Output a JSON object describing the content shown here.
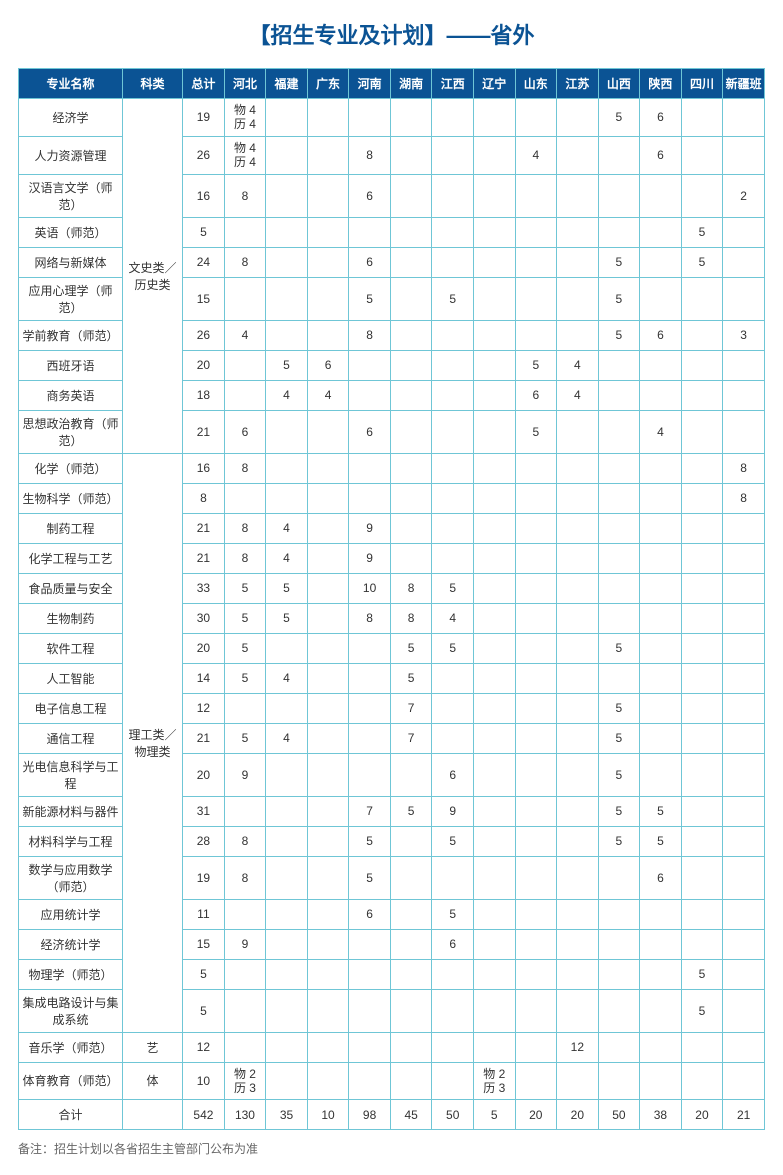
{
  "title": "【招生专业及计划】——省外",
  "columns": [
    "专业名称",
    "科类",
    "总计",
    "河北",
    "福建",
    "广东",
    "河南",
    "湖南",
    "江西",
    "辽宁",
    "山东",
    "江苏",
    "山西",
    "陕西",
    "四川",
    "新疆班"
  ],
  "categories": [
    {
      "label": "文史类／历史类",
      "count": 10
    },
    {
      "label": "理工类／物理类",
      "count": 18
    },
    {
      "label": "艺",
      "count": 1
    },
    {
      "label": "体",
      "count": 1
    }
  ],
  "rows": [
    {
      "major": "经济学",
      "cells": [
        "19",
        "物 4\n历 4",
        "",
        "",
        "",
        "",
        "",
        "",
        "",
        "",
        "5",
        "6",
        "",
        ""
      ]
    },
    {
      "major": "人力资源管理",
      "cells": [
        "26",
        "物 4\n历 4",
        "",
        "",
        "8",
        "",
        "",
        "",
        "4",
        "",
        "",
        "6",
        "",
        ""
      ]
    },
    {
      "major": "汉语言文学（师范）",
      "cells": [
        "16",
        "8",
        "",
        "",
        "6",
        "",
        "",
        "",
        "",
        "",
        "",
        "",
        "",
        "2"
      ]
    },
    {
      "major": "英语（师范）",
      "cells": [
        "5",
        "",
        "",
        "",
        "",
        "",
        "",
        "",
        "",
        "",
        "",
        "",
        "5",
        ""
      ]
    },
    {
      "major": "网络与新媒体",
      "cells": [
        "24",
        "8",
        "",
        "",
        "6",
        "",
        "",
        "",
        "",
        "",
        "5",
        "",
        "5",
        ""
      ]
    },
    {
      "major": "应用心理学（师范）",
      "cells": [
        "15",
        "",
        "",
        "",
        "5",
        "",
        "5",
        "",
        "",
        "",
        "5",
        "",
        "",
        ""
      ]
    },
    {
      "major": "学前教育（师范）",
      "cells": [
        "26",
        "4",
        "",
        "",
        "8",
        "",
        "",
        "",
        "",
        "",
        "5",
        "6",
        "",
        "3"
      ]
    },
    {
      "major": "西班牙语",
      "cells": [
        "20",
        "",
        "5",
        "6",
        "",
        "",
        "",
        "",
        "5",
        "4",
        "",
        "",
        "",
        ""
      ]
    },
    {
      "major": "商务英语",
      "cells": [
        "18",
        "",
        "4",
        "4",
        "",
        "",
        "",
        "",
        "6",
        "4",
        "",
        "",
        "",
        ""
      ]
    },
    {
      "major": "思想政治教育（师范）",
      "cells": [
        "21",
        "6",
        "",
        "",
        "6",
        "",
        "",
        "",
        "5",
        "",
        "",
        "4",
        "",
        ""
      ]
    },
    {
      "major": "化学（师范）",
      "cells": [
        "16",
        "8",
        "",
        "",
        "",
        "",
        "",
        "",
        "",
        "",
        "",
        "",
        "",
        "8"
      ]
    },
    {
      "major": "生物科学（师范）",
      "cells": [
        "8",
        "",
        "",
        "",
        "",
        "",
        "",
        "",
        "",
        "",
        "",
        "",
        "",
        "8"
      ]
    },
    {
      "major": "制药工程",
      "cells": [
        "21",
        "8",
        "4",
        "",
        "9",
        "",
        "",
        "",
        "",
        "",
        "",
        "",
        "",
        ""
      ]
    },
    {
      "major": "化学工程与工艺",
      "cells": [
        "21",
        "8",
        "4",
        "",
        "9",
        "",
        "",
        "",
        "",
        "",
        "",
        "",
        "",
        ""
      ]
    },
    {
      "major": "食品质量与安全",
      "cells": [
        "33",
        "5",
        "5",
        "",
        "10",
        "8",
        "5",
        "",
        "",
        "",
        "",
        "",
        "",
        ""
      ]
    },
    {
      "major": "生物制药",
      "cells": [
        "30",
        "5",
        "5",
        "",
        "8",
        "8",
        "4",
        "",
        "",
        "",
        "",
        "",
        "",
        ""
      ]
    },
    {
      "major": "软件工程",
      "cells": [
        "20",
        "5",
        "",
        "",
        "",
        "5",
        "5",
        "",
        "",
        "",
        "5",
        "",
        "",
        ""
      ]
    },
    {
      "major": "人工智能",
      "cells": [
        "14",
        "5",
        "4",
        "",
        "",
        "5",
        "",
        "",
        "",
        "",
        "",
        "",
        "",
        ""
      ]
    },
    {
      "major": "电子信息工程",
      "cells": [
        "12",
        "",
        "",
        "",
        "",
        "7",
        "",
        "",
        "",
        "",
        "5",
        "",
        "",
        ""
      ]
    },
    {
      "major": "通信工程",
      "cells": [
        "21",
        "5",
        "4",
        "",
        "",
        "7",
        "",
        "",
        "",
        "",
        "5",
        "",
        "",
        ""
      ]
    },
    {
      "major": "光电信息科学与工程",
      "cells": [
        "20",
        "9",
        "",
        "",
        "",
        "",
        "6",
        "",
        "",
        "",
        "5",
        "",
        "",
        ""
      ]
    },
    {
      "major": "新能源材料与器件",
      "cells": [
        "31",
        "",
        "",
        "",
        "7",
        "5",
        "9",
        "",
        "",
        "",
        "5",
        "5",
        "",
        ""
      ]
    },
    {
      "major": "材料科学与工程",
      "cells": [
        "28",
        "8",
        "",
        "",
        "5",
        "",
        "5",
        "",
        "",
        "",
        "5",
        "5",
        "",
        ""
      ]
    },
    {
      "major": "数学与应用数学（师范）",
      "cells": [
        "19",
        "8",
        "",
        "",
        "5",
        "",
        "",
        "",
        "",
        "",
        "",
        "6",
        "",
        ""
      ]
    },
    {
      "major": "应用统计学",
      "cells": [
        "11",
        "",
        "",
        "",
        "6",
        "",
        "5",
        "",
        "",
        "",
        "",
        "",
        "",
        ""
      ]
    },
    {
      "major": "经济统计学",
      "cells": [
        "15",
        "9",
        "",
        "",
        "",
        "",
        "6",
        "",
        "",
        "",
        "",
        "",
        "",
        ""
      ]
    },
    {
      "major": "物理学（师范）",
      "cells": [
        "5",
        "",
        "",
        "",
        "",
        "",
        "",
        "",
        "",
        "",
        "",
        "",
        "5",
        ""
      ]
    },
    {
      "major": "集成电路设计与集成系统",
      "cells": [
        "5",
        "",
        "",
        "",
        "",
        "",
        "",
        "",
        "",
        "",
        "",
        "",
        "5",
        ""
      ]
    },
    {
      "major": "音乐学（师范）",
      "cells": [
        "12",
        "",
        "",
        "",
        "",
        "",
        "",
        "",
        "",
        "12",
        "",
        "",
        "",
        ""
      ]
    },
    {
      "major": "体育教育（师范）",
      "cells": [
        "10",
        "物 2\n历 3",
        "",
        "",
        "",
        "",
        "",
        "物 2\n历 3",
        "",
        "",
        "",
        "",
        "",
        ""
      ]
    }
  ],
  "totalRow": {
    "label": "合计",
    "cells": [
      "542",
      "130",
      "35",
      "10",
      "98",
      "45",
      "50",
      "5",
      "20",
      "20",
      "50",
      "38",
      "20",
      "21"
    ]
  },
  "note": "备注：招生计划以各省招生主管部门公布为准"
}
